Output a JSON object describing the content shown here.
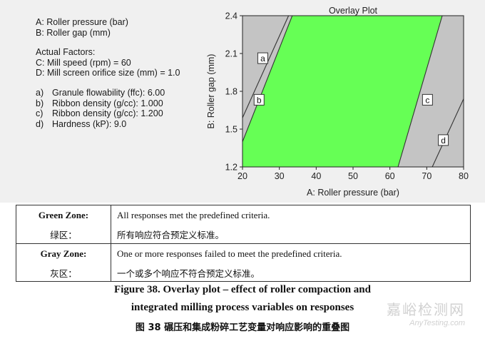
{
  "legend_panel": {
    "factors": [
      "A: Roller pressure (bar)",
      "B: Roller gap (mm)"
    ],
    "actual_factors_title": "Actual Factors:",
    "actual_factors": [
      "C: Mill speed (rpm) = 60",
      "D: Mill screen orifice size (mm) = 1.0"
    ],
    "responses": [
      {
        "key": "a)",
        "text": "Granule flowability (ffc): 6.00"
      },
      {
        "key": "b)",
        "text": "Ribbon density (g/cc): 1.000"
      },
      {
        "key": "c)",
        "text": "Ribbon density (g/cc): 1.200"
      },
      {
        "key": "d)",
        "text": "Hardness (kP): 9.0"
      }
    ]
  },
  "chart_data": {
    "type": "area",
    "title": "Overlay Plot",
    "xlabel": "A: Roller pressure (bar)",
    "ylabel": "B: Roller gap (mm)",
    "xlim": [
      20,
      80
    ],
    "ylim": [
      1.2,
      2.4
    ],
    "x_ticks": [
      "20",
      "30",
      "40",
      "50",
      "60",
      "70",
      "80"
    ],
    "y_ticks": [
      "1.2",
      "1.5",
      "1.8",
      "2.1",
      "2.4"
    ],
    "colors": {
      "green_zone": "#66ff55",
      "gray_zone": "#c4c4c4"
    },
    "green_region": [
      [
        20,
        1.4
      ],
      [
        33.5,
        2.4
      ],
      [
        74.2,
        2.4
      ],
      [
        62.2,
        1.2
      ],
      [
        20,
        1.2
      ]
    ],
    "boundaries": [
      {
        "label": "a",
        "points": [
          [
            20,
            1.59
          ],
          [
            32.5,
            2.4
          ]
        ]
      },
      {
        "label": "b",
        "points": [
          [
            20,
            1.4
          ],
          [
            33.5,
            2.4
          ]
        ]
      },
      {
        "label": "c",
        "points": [
          [
            62.2,
            1.2
          ],
          [
            74.2,
            2.4
          ]
        ]
      },
      {
        "label": "d",
        "points": [
          [
            71.5,
            1.2
          ],
          [
            80,
            1.74
          ]
        ]
      }
    ],
    "boundary_label_positions": {
      "a": [
        25.5,
        2.06
      ],
      "b": [
        24.5,
        1.73
      ],
      "c": [
        70.2,
        1.73
      ],
      "d": [
        74.5,
        1.41
      ]
    }
  },
  "zone_table": {
    "rows": [
      {
        "name": "Green Zone:",
        "name_cn": "绿区：",
        "desc": "All responses met the predefined criteria.",
        "desc_cn": "所有响应符合预定义标准。"
      },
      {
        "name": "Gray Zone:",
        "name_cn": "灰区：",
        "desc": "One or more responses failed to meet the predefined criteria.",
        "desc_cn": "一个或多个响应不符合预定义标准。"
      }
    ]
  },
  "caption": {
    "line1": "Figure 38. Overlay plot – effect of roller compaction and",
    "line2": "integrated milling process variables on responses",
    "line3": "图 38  碾压和集成粉碎工艺变量对响应影响的重叠图"
  },
  "watermark": {
    "cn": "嘉峪检测网",
    "en": "AnyTesting.com"
  }
}
